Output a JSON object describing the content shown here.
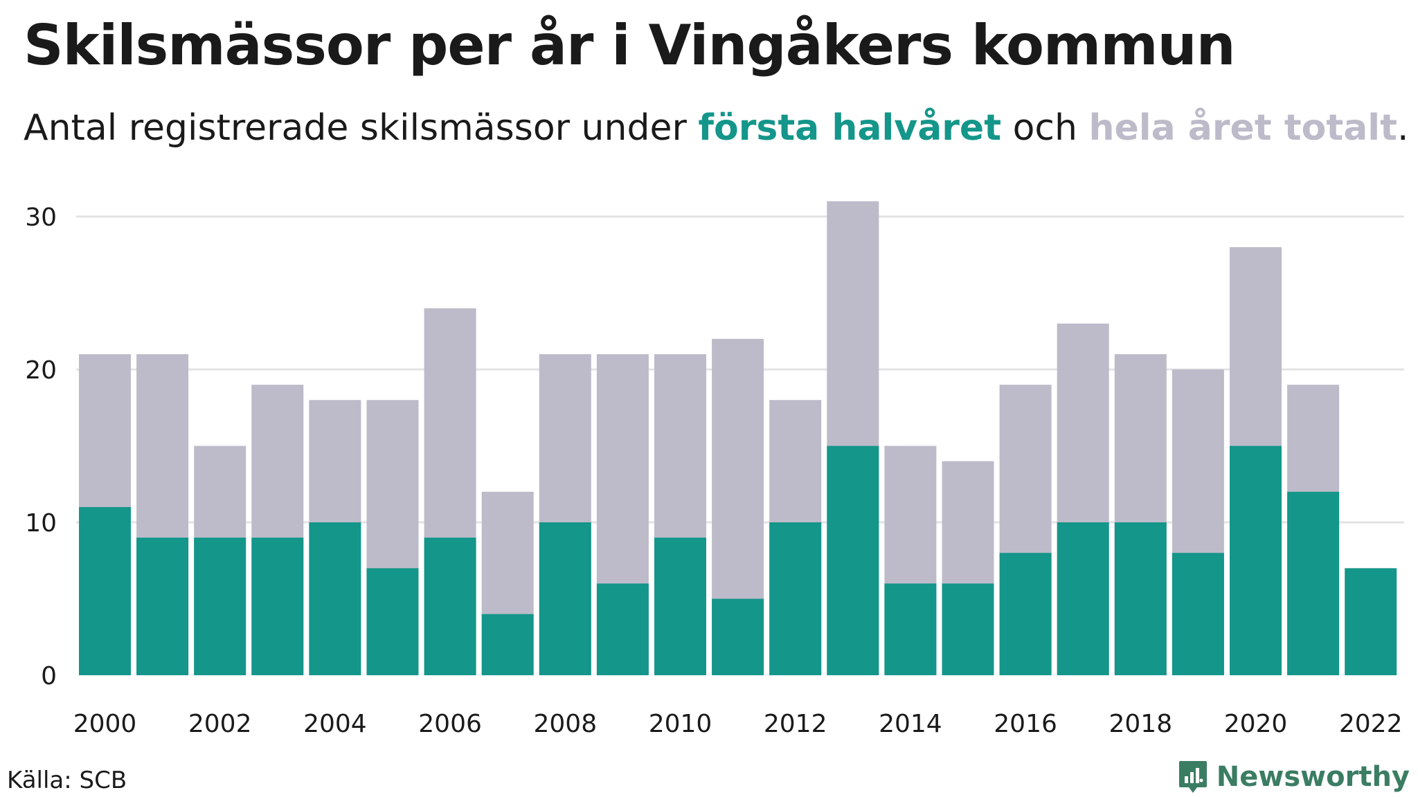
{
  "header": {
    "title": "Skilsmässor per år i Vingåkers kommun",
    "subtitle_prefix": "Antal registrerade skilsmässor under ",
    "subtitle_first": "första halvåret",
    "subtitle_mid": " och ",
    "subtitle_total": "hela året totalt",
    "subtitle_suffix": "."
  },
  "colors": {
    "first_half": "#14968a",
    "total": "#bdbbc9",
    "grid": "#e3e3e6",
    "text": "#1a1a1a",
    "brand": "#3b7d63"
  },
  "footer": {
    "source": "Källa: SCB",
    "brand": "Newsworthy"
  },
  "chart_data": {
    "type": "bar",
    "mode": "overlay",
    "categories": [
      "2000",
      "2001",
      "2002",
      "2003",
      "2004",
      "2005",
      "2006",
      "2007",
      "2008",
      "2009",
      "2010",
      "2011",
      "2012",
      "2013",
      "2014",
      "2015",
      "2016",
      "2017",
      "2018",
      "2019",
      "2020",
      "2021",
      "2022"
    ],
    "x_tick_labels": [
      "2000",
      "2002",
      "2004",
      "2006",
      "2008",
      "2010",
      "2012",
      "2014",
      "2016",
      "2018",
      "2020",
      "2022"
    ],
    "series": [
      {
        "name": "hela året totalt",
        "color_key": "total",
        "values": [
          21,
          21,
          15,
          19,
          18,
          18,
          24,
          12,
          21,
          21,
          21,
          22,
          18,
          31,
          15,
          14,
          19,
          23,
          21,
          20,
          28,
          19,
          null
        ]
      },
      {
        "name": "första halvåret",
        "color_key": "first_half",
        "values": [
          11,
          9,
          9,
          9,
          10,
          7,
          9,
          4,
          10,
          6,
          9,
          5,
          10,
          15,
          6,
          6,
          8,
          10,
          10,
          8,
          15,
          12,
          7
        ]
      }
    ],
    "y_ticks": [
      0,
      10,
      20,
      30
    ],
    "ylim": [
      0,
      31
    ],
    "grid": true
  }
}
